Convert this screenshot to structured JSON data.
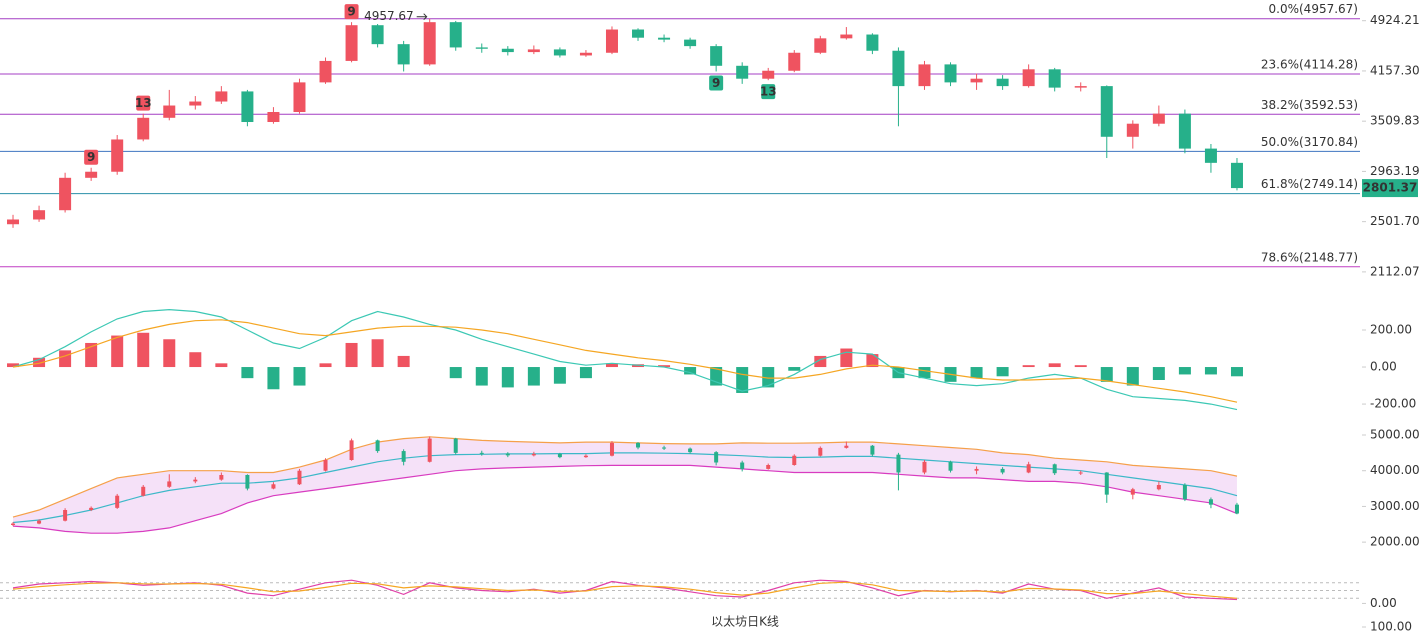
{
  "chart_data": [
    {
      "type": "candlestick",
      "title": "以太坊日K线",
      "log_scale": true,
      "ylim": [
        1987,
        5280
      ],
      "yticks": [
        4924.21,
        {
          "value": 4157.3,
          "label": "4157.30"
        },
        3509.83,
        2963.19,
        {
          "value": 2501.7,
          "label": "2501.70"
        },
        2112.07
      ],
      "up_color": "#ef5360",
      "down_color": "#26b08a",
      "open": [
        2480,
        2520,
        2600,
        2900,
        2960,
        3300,
        3550,
        3700,
        3750,
        3880,
        3500,
        3620,
        4000,
        4300,
        4850,
        4550,
        4250,
        4900,
        4500,
        4480,
        4430,
        4470,
        4380,
        4420,
        4780,
        4650,
        4620,
        4520,
        4230,
        4050,
        4160,
        4420,
        4640,
        4700,
        4450,
        3950,
        4250,
        4000,
        4050,
        3950,
        4180,
        3930,
        3950,
        3330,
        3480,
        3600,
        3200,
        3050
      ],
      "high": [
        2560,
        2640,
        2950,
        3000,
        3350,
        3600,
        3900,
        3820,
        3950,
        3900,
        3680,
        4050,
        4350,
        4900,
        4870,
        4600,
        4957.67,
        4920,
        4560,
        4520,
        4530,
        4500,
        4460,
        4830,
        4800,
        4700,
        4650,
        4550,
        4280,
        4200,
        4460,
        4680,
        4820,
        4720,
        4500,
        4300,
        4280,
        4120,
        4100,
        4250,
        4200,
        4000,
        3960,
        3520,
        3700,
        3650,
        3250,
        3100
      ],
      "low": [
        2450,
        2500,
        2580,
        2870,
        2930,
        3280,
        3520,
        3650,
        3720,
        3450,
        3480,
        3600,
        3980,
        4280,
        4500,
        4150,
        4230,
        4450,
        4420,
        4380,
        4400,
        4350,
        4360,
        4400,
        4600,
        4580,
        4480,
        4150,
        3980,
        4030,
        4140,
        4400,
        4620,
        4400,
        3450,
        3900,
        3950,
        3900,
        3900,
        3930,
        3880,
        3880,
        3100,
        3200,
        3450,
        3150,
        2950,
        2780
      ],
      "close": [
        2520,
        2600,
        2900,
        2960,
        3300,
        3550,
        3700,
        3750,
        3880,
        3500,
        3620,
        4000,
        4300,
        4850,
        4550,
        4250,
        4900,
        4500,
        4480,
        4430,
        4470,
        4380,
        4420,
        4780,
        4650,
        4620,
        4520,
        4230,
        4050,
        4160,
        4420,
        4640,
        4700,
        4450,
        3950,
        4250,
        4000,
        4050,
        3950,
        4180,
        3930,
        3950,
        3330,
        3480,
        3600,
        3200,
        3050,
        2801.37
      ],
      "td_up": [
        null,
        null,
        null,
        "9",
        null,
        "13",
        null,
        null,
        null,
        null,
        null,
        null,
        null,
        "9",
        null,
        null,
        null,
        null,
        null,
        null,
        null,
        null,
        null,
        null,
        null,
        null,
        null,
        null,
        null,
        null,
        null,
        null,
        null,
        null,
        null,
        null,
        null,
        null,
        null,
        null,
        null,
        null,
        null,
        null,
        null,
        null,
        null,
        null
      ],
      "td_down": [
        null,
        null,
        null,
        null,
        null,
        null,
        null,
        null,
        null,
        null,
        null,
        null,
        null,
        null,
        null,
        null,
        null,
        null,
        null,
        null,
        null,
        null,
        null,
        null,
        null,
        null,
        null,
        "9",
        null,
        "13",
        null,
        null,
        null,
        null,
        null,
        null,
        null,
        null,
        null,
        null,
        null,
        null,
        null,
        null,
        null,
        null,
        null,
        null
      ],
      "fib_levels": [
        {
          "value": 4957.67,
          "label": "0.0%(4957.67)",
          "color": "#a43fc4"
        },
        {
          "value": 4114.28,
          "label": "23.6%(4114.28)",
          "color": "#a43fc4"
        },
        {
          "value": 3592.53,
          "label": "38.2%(3592.53)",
          "color": "#a43fc4"
        },
        {
          "value": 3170.84,
          "label": "50.0%(3170.84)",
          "color": "#3f74c0"
        },
        {
          "value": 2749.14,
          "label": "61.8%(2749.14)",
          "color": "#2a8fa8"
        },
        {
          "value": 2148.77,
          "label": "78.6%(2148.77)",
          "color": "#c03fc4"
        }
      ]
    },
    {
      "type": "macd",
      "ylim": [
        -286,
        362
      ],
      "yticks": [
        {
          "value": 200,
          "label": "200.00"
        },
        {
          "value": 0,
          "label": "0.00"
        },
        {
          "value": -200,
          "label": "-200.00"
        }
      ],
      "histogram": [
        20,
        50,
        90,
        130,
        170,
        185,
        150,
        80,
        20,
        -60,
        -120,
        -100,
        20,
        130,
        150,
        60,
        0,
        -60,
        -100,
        -110,
        -100,
        -90,
        -60,
        20,
        15,
        10,
        -40,
        -100,
        -140,
        -110,
        -20,
        60,
        100,
        70,
        -60,
        -60,
        -80,
        -60,
        -50,
        10,
        20,
        10,
        -80,
        -100,
        -70,
        -40,
        -40,
        -50
      ],
      "up_color": "#ef5360",
      "down_color": "#26b08a",
      "series": [
        {
          "color": "#3cc8b4",
          "values": [
            0,
            40,
            110,
            190,
            260,
            300,
            310,
            300,
            270,
            200,
            130,
            100,
            160,
            250,
            300,
            270,
            230,
            200,
            150,
            110,
            70,
            30,
            10,
            20,
            10,
            0,
            -30,
            -80,
            -130,
            -100,
            -40,
            40,
            80,
            70,
            -30,
            -60,
            -90,
            -100,
            -90,
            -60,
            -40,
            -60,
            -120,
            -160,
            -170,
            -180,
            -200,
            -230
          ]
        },
        {
          "color": "#f5a623",
          "values": [
            0,
            20,
            60,
            110,
            160,
            200,
            230,
            250,
            255,
            240,
            210,
            180,
            170,
            190,
            210,
            220,
            220,
            215,
            200,
            180,
            150,
            120,
            90,
            70,
            50,
            35,
            15,
            -10,
            -40,
            -60,
            -60,
            -40,
            -10,
            10,
            0,
            -20,
            -40,
            -60,
            -70,
            -70,
            -65,
            -60,
            -75,
            -95,
            -115,
            -135,
            -160,
            -190
          ]
        }
      ]
    },
    {
      "type": "band",
      "ylim": [
        1500,
        5280
      ],
      "yticks": [
        {
          "value": 5000,
          "label": "5000.00"
        },
        {
          "value": 4000,
          "label": "4000.00"
        },
        {
          "value": 3000,
          "label": "3000.00"
        },
        {
          "value": 2000,
          "label": "2000.00"
        }
      ],
      "fill": "#f5e1f8",
      "series": [
        {
          "color": "#f5a04a",
          "values": [
            2700,
            2900,
            3200,
            3500,
            3800,
            3900,
            4000,
            4000,
            4000,
            3950,
            3950,
            4100,
            4300,
            4600,
            4800,
            4900,
            4950,
            4900,
            4850,
            4820,
            4800,
            4780,
            4800,
            4800,
            4780,
            4760,
            4750,
            4750,
            4780,
            4770,
            4770,
            4780,
            4800,
            4800,
            4750,
            4700,
            4650,
            4600,
            4500,
            4450,
            4350,
            4300,
            4250,
            4150,
            4100,
            4050,
            4000,
            3850
          ]
        },
        {
          "color": "#3cb8c8",
          "values": [
            2550,
            2620,
            2750,
            2900,
            3100,
            3300,
            3450,
            3550,
            3650,
            3650,
            3700,
            3800,
            3950,
            4100,
            4250,
            4350,
            4420,
            4450,
            4460,
            4470,
            4470,
            4480,
            4480,
            4500,
            4500,
            4490,
            4480,
            4450,
            4420,
            4380,
            4370,
            4380,
            4400,
            4400,
            4350,
            4300,
            4250,
            4200,
            4150,
            4100,
            4050,
            4000,
            3900,
            3800,
            3700,
            3600,
            3500,
            3300
          ]
        },
        {
          "color": "#d83cc0",
          "values": [
            2450,
            2400,
            2300,
            2250,
            2250,
            2300,
            2400,
            2600,
            2800,
            3100,
            3300,
            3400,
            3500,
            3600,
            3700,
            3800,
            3900,
            4000,
            4050,
            4080,
            4100,
            4120,
            4140,
            4150,
            4150,
            4150,
            4150,
            4100,
            4050,
            4000,
            3950,
            3950,
            3950,
            3950,
            3900,
            3850,
            3800,
            3800,
            3750,
            3700,
            3700,
            3650,
            3550,
            3400,
            3300,
            3200,
            3100,
            2800
          ]
        }
      ]
    },
    {
      "type": "line",
      "ylim": [
        -10,
        110
      ],
      "yticks": [
        {
          "value": 0,
          "label": "0.00"
        }
      ],
      "levels": [
        20,
        50,
        80
      ],
      "series": [
        {
          "color": "#e040a8",
          "values": [
            60,
            75,
            80,
            85,
            80,
            70,
            75,
            80,
            70,
            40,
            30,
            55,
            80,
            90,
            70,
            35,
            80,
            60,
            50,
            45,
            55,
            40,
            50,
            85,
            70,
            60,
            45,
            30,
            25,
            50,
            80,
            90,
            85,
            60,
            30,
            50,
            45,
            50,
            40,
            75,
            55,
            50,
            20,
            40,
            60,
            25,
            20,
            15
          ]
        },
        {
          "color": "#f5a623",
          "values": [
            55,
            65,
            72,
            78,
            80,
            76,
            75,
            77,
            74,
            60,
            45,
            48,
            62,
            78,
            76,
            60,
            68,
            64,
            57,
            50,
            52,
            47,
            48,
            65,
            68,
            64,
            55,
            42,
            32,
            40,
            60,
            78,
            82,
            72,
            50,
            48,
            46,
            48,
            44,
            58,
            56,
            52,
            38,
            38,
            48,
            38,
            28,
            20
          ]
        }
      ]
    },
    {
      "type": "line",
      "ylim": [
        70,
        115
      ],
      "yticks": [
        {
          "value": 100,
          "label": "100.00"
        }
      ]
    }
  ]
}
